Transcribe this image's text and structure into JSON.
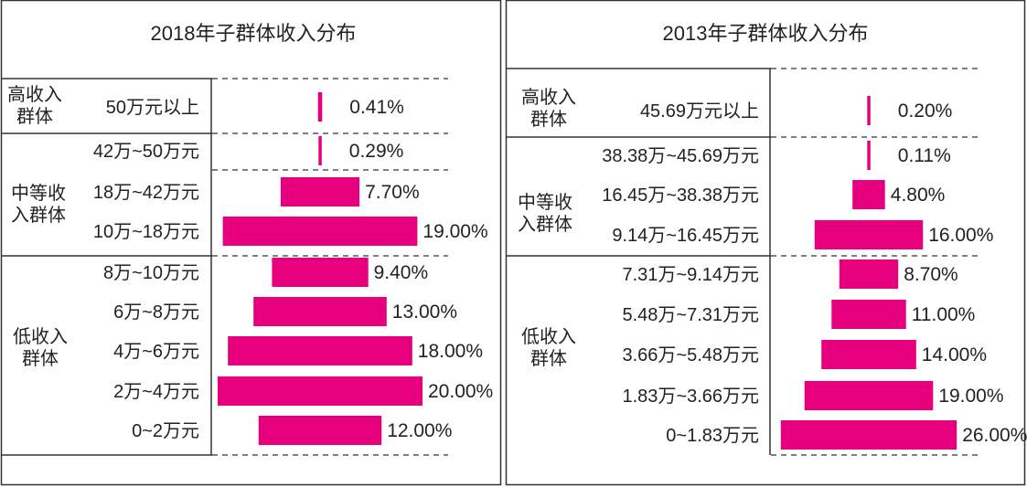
{
  "chart_data": [
    {
      "type": "bar",
      "orientation": "horizontal",
      "style": "centered (tornado)",
      "title": "2018年子群体收入分布",
      "bar_color": "#e6007e",
      "groups": [
        {
          "label": "高收入群体",
          "rows": [
            0
          ]
        },
        {
          "label": "中等收入群体",
          "rows": [
            1,
            2,
            3
          ]
        },
        {
          "label": "低收入群体",
          "rows": [
            4,
            5,
            6,
            7,
            8
          ]
        }
      ],
      "categories": [
        "50万元以上",
        "42万~50万元",
        "18万~42万元",
        "10万~18万元",
        "8万~10万元",
        "6万~8万元",
        "4万~6万元",
        "2万~4万元",
        "0~2万元"
      ],
      "values": [
        0.41,
        0.29,
        7.7,
        19.0,
        9.4,
        13.0,
        18.0,
        20.0,
        12.0
      ],
      "value_labels": [
        "0.41%",
        "0.29%",
        "7.70%",
        "19.00%",
        "9.40%",
        "13.00%",
        "18.00%",
        "20.00%",
        "12.00%"
      ]
    },
    {
      "type": "bar",
      "orientation": "horizontal",
      "style": "centered (tornado)",
      "title": "2013年子群体收入分布",
      "bar_color": "#e6007e",
      "groups": [
        {
          "label": "高收入群体",
          "rows": [
            0
          ]
        },
        {
          "label": "中等收入群体",
          "rows": [
            1,
            2,
            3
          ]
        },
        {
          "label": "低收入群体",
          "rows": [
            4,
            5,
            6,
            7,
            8
          ]
        }
      ],
      "categories": [
        "45.69万元以上",
        "38.38万~45.69万元",
        "16.45万~38.38万元",
        "9.14万~16.45万元",
        "7.31万~9.14万元",
        "5.48万~7.31万元",
        "3.66万~5.48万元",
        "1.83万~3.66万元",
        "0~1.83万元"
      ],
      "values": [
        0.2,
        0.11,
        4.8,
        16.0,
        8.7,
        11.0,
        14.0,
        19.0,
        26.0
      ],
      "value_labels": [
        "0.20%",
        "0.11%",
        "4.80%",
        "16.00%",
        "8.70%",
        "11.00%",
        "14.00%",
        "19.00%",
        "26.00%"
      ]
    }
  ]
}
